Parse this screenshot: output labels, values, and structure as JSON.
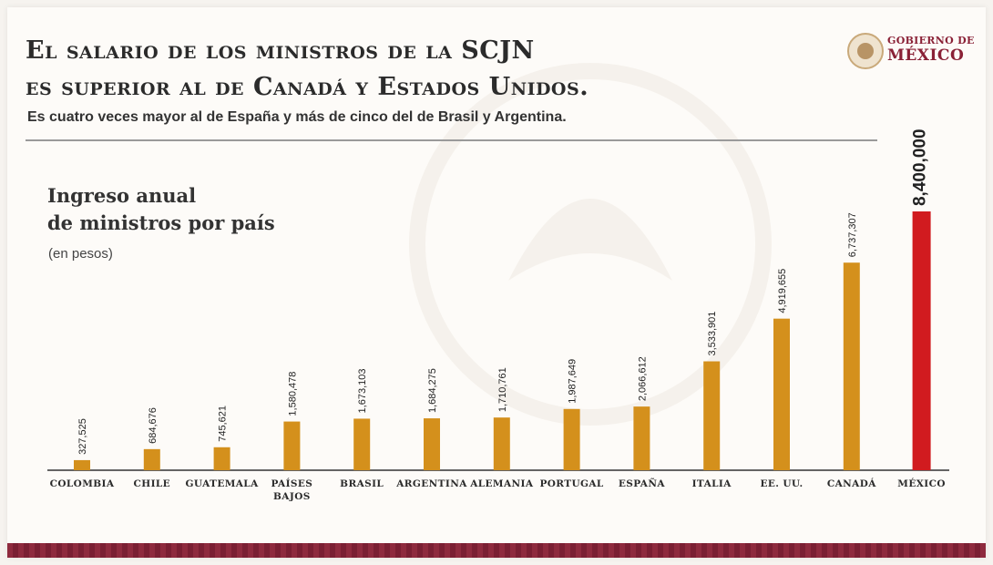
{
  "header": {
    "title_line1": "El salario de los ministros de la SCJN",
    "title_line2": "es superior al de Canadá y Estados Unidos.",
    "subtitle": "Es cuatro veces mayor al de España y más de cinco del de Brasil y Argentina.",
    "logo_line1": "GOBIERNO DE",
    "logo_line2": "MÉXICO"
  },
  "colors": {
    "bar": "#d4901c",
    "highlight_bar": "#d11b1f",
    "axis": "#333333",
    "footer": "#8e2a3e"
  },
  "chart_data": {
    "type": "bar",
    "title_line1": "Ingreso anual",
    "title_line2": "de ministros por país",
    "unit": "(en pesos)",
    "categories": [
      "Colombia",
      "Chile",
      "Guatemala",
      "Países Bajos",
      "Brasil",
      "Argentina",
      "Alemania",
      "Portugal",
      "España",
      "Italia",
      "EE. UU.",
      "Canadá",
      "México"
    ],
    "values": [
      327525,
      684676,
      745621,
      1580478,
      1673103,
      1684275,
      1710761,
      1987649,
      2066612,
      3533901,
      4919655,
      6737307,
      8400000
    ],
    "value_labels": [
      "327,525",
      "684,676",
      "745,621",
      "1,580,478",
      "1,673,103",
      "1,684,275",
      "1,710,761",
      "1,987,649",
      "2,066,612",
      "3,533,901",
      "4,919,655",
      "6,737,307",
      "8,400,000"
    ],
    "highlight_index": 12,
    "ylim": [
      0,
      8400000
    ],
    "grid": false,
    "legend": "none"
  }
}
